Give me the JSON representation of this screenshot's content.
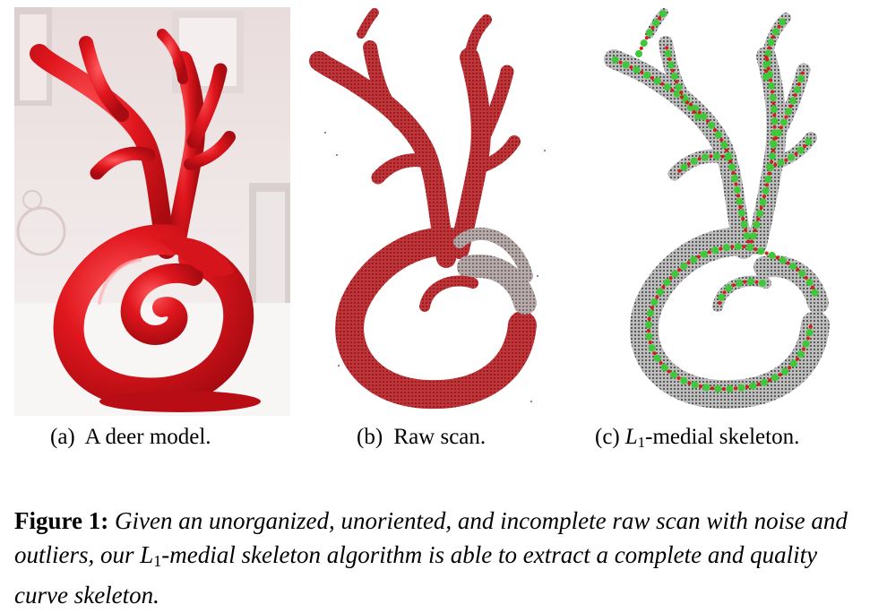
{
  "figure": {
    "panels": [
      {
        "id": "a",
        "label": "(a)",
        "caption": "A deer model."
      },
      {
        "id": "b",
        "label": "(b)",
        "caption": "Raw scan."
      },
      {
        "id": "c",
        "label": "(c)",
        "caption_math_var": "L",
        "caption_math_sub": "1",
        "caption_rest": "-medial skeleton."
      }
    ],
    "caption": {
      "label": "Figure 1:",
      "text_before": " Given an unorganized, unoriented, and incomplete raw scan with noise and outliers, our ",
      "math_var": "L",
      "math_sub": "1",
      "text_after": "-medial skeleton algorithm is able to extract a complete and quality curve skeleton."
    }
  },
  "colors": {
    "deer_red": "#d8141c",
    "photo_bg": "#efe6e6",
    "scan_red": "#c0282c",
    "scan_gray": "#555555",
    "skeleton_green": "#3ec83a",
    "skeleton_red": "#d41e1e"
  }
}
